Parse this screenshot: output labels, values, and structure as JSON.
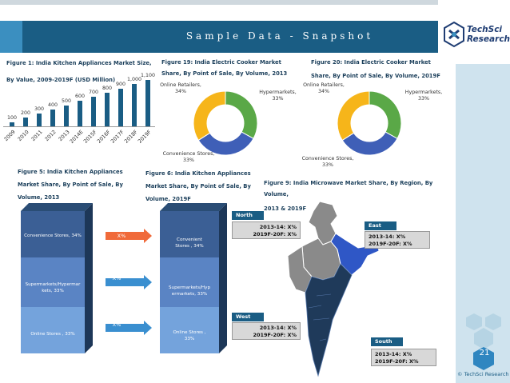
{
  "header": {
    "title": "Sample Data - Snapshot",
    "logo_line1": "TechSci",
    "logo_line2": "Research"
  },
  "footer": {
    "page_number": "21",
    "copyright": "© TechSci Research"
  },
  "figure1": {
    "title_line1": "Figure 1: India Kitchen Appliances Market Size,",
    "title_line2": "By Value, 2009-2019F (USD Million)"
  },
  "figure19": {
    "title_line1": "Figure 19: India Electric Cooker Market",
    "title_line2": "Share, By Point of Sale, By Volume, 2013",
    "labels": {
      "online": "Online Retailers,",
      "online_pct": "34%",
      "hyper": "Hypermarkets,",
      "hyper_pct": "33%",
      "conv": "Convenience Stores,",
      "conv_pct": "33%"
    }
  },
  "figure20": {
    "title_line1": "Figure 20: India Electric Cooker Market",
    "title_line2": "Share, By Point of Sale, By Volume, 2019F",
    "labels": {
      "online": "Online Retailers,",
      "online_pct": "34%",
      "hyper": "Hypermarkets,",
      "hyper_pct": "33%",
      "conv": "Convenience Stores,",
      "conv_pct": "33%"
    }
  },
  "figure5": {
    "title_line1": "Figure 5: India Kitchen Appliances",
    "title_line2": "Market Share, By Point of Sale, By",
    "title_line3": "Volume, 2013",
    "segments": {
      "top": "Convenience Stores, 34%",
      "mid_line1": "Supermarkets/Hypermar",
      "mid_line2": "kets, 33%",
      "bottom": "Online Stores , 33%"
    }
  },
  "figure6": {
    "title_line1": "Figure 6: India Kitchen Appliances",
    "title_line2": "Market Share, By Point of Sale, By",
    "title_line3": "Volume, 2019F",
    "segments": {
      "top_line1": "Convenient",
      "top_line2": "Stores , 34%",
      "mid_line1": "Supermarkets/Hyp",
      "mid_line2": "ermarkets, 33%",
      "bottom_line1": "Online Stores ,",
      "bottom_line2": "33%"
    }
  },
  "arrows": {
    "top": "X%",
    "mid": "X%",
    "bottom": "X%"
  },
  "figure9": {
    "title_line1": "Figure 9: India Microwave Market Share, By Region, By Volume,",
    "title_line2": "2013 & 2019F",
    "regions": {
      "north": {
        "name": "North",
        "line1": "2013-14: X%",
        "line2": "2019F-20F: X%"
      },
      "east": {
        "name": "East",
        "line1": "2013-14: X%",
        "line2": "2019F-20F: X%"
      },
      "west": {
        "name": "West",
        "line1": "2013-14: X%",
        "line2": "2019F-20F: X%"
      },
      "south": {
        "name": "South",
        "line1": "2013-14: X%",
        "line2": "2019F-20F: X%"
      }
    }
  },
  "colors": {
    "banner": "#1a5d84",
    "bar": "#1a5d84",
    "donut_green": "#5aa847",
    "donut_blue": "#3f5fb7",
    "donut_yellow": "#f6b51a",
    "map_dark": "#1f3a5a",
    "map_blue": "#2f57c6",
    "map_grey": "#8a8a8a"
  },
  "chart_data": [
    {
      "type": "bar",
      "categories": [
        "2009",
        "2010",
        "2011",
        "2012",
        "2013",
        "2014E",
        "2015F",
        "2016F",
        "2017F",
        "2018F",
        "2019F"
      ],
      "values": [
        100,
        200,
        300,
        400,
        500,
        600,
        700,
        800,
        900,
        1000,
        1100
      ],
      "data_labels": [
        "100",
        "200",
        "300",
        "400",
        "500",
        "600",
        "700",
        "800",
        "900",
        "1,000",
        "1,100"
      ],
      "ylim": [
        0,
        1100
      ]
    },
    {
      "type": "pie",
      "categories": [
        "Hypermarkets",
        "Convenience Stores",
        "Online Retailers"
      ],
      "values": [
        33,
        33,
        34
      ]
    },
    {
      "type": "pie",
      "categories": [
        "Hypermarkets",
        "Convenience Stores",
        "Online Retailers"
      ],
      "values": [
        33,
        33,
        34
      ]
    }
  ]
}
